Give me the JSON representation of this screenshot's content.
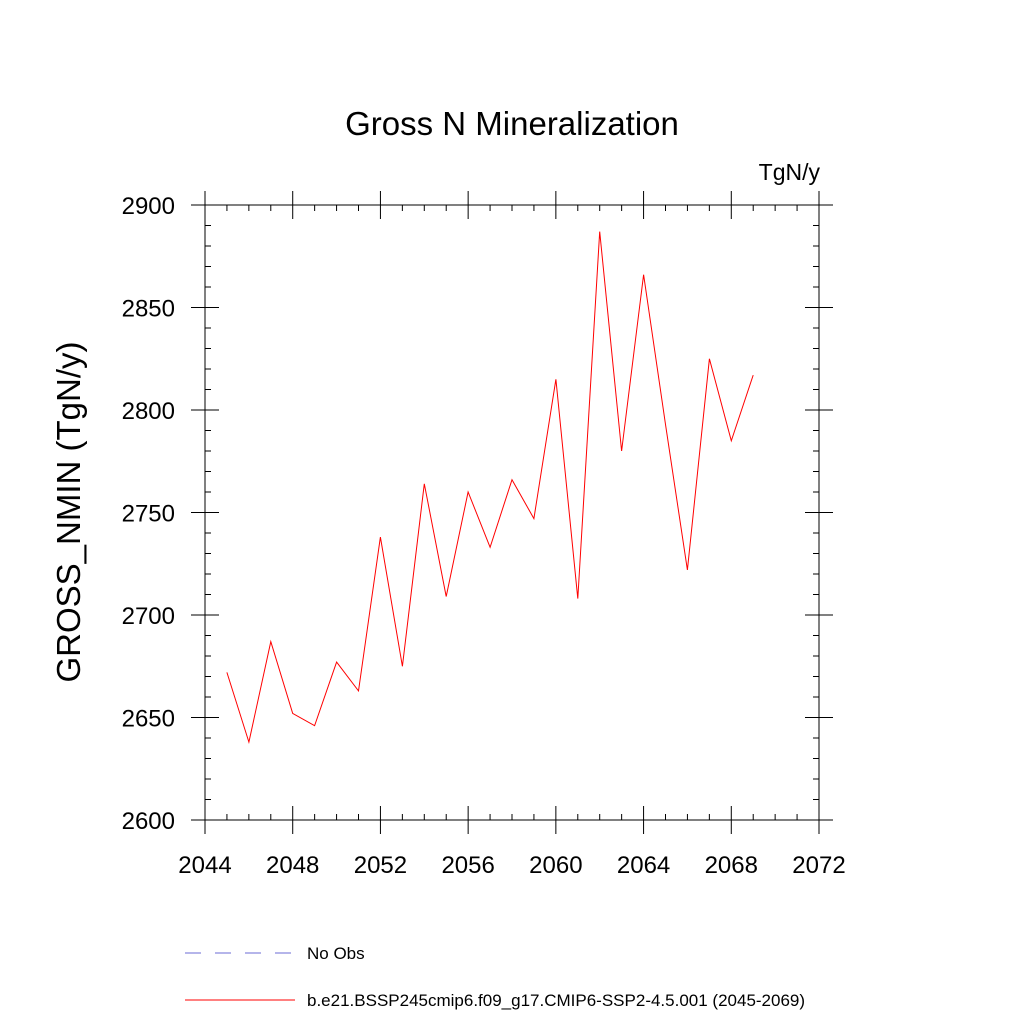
{
  "chart_data": {
    "type": "line",
    "title": "Gross N Mineralization",
    "units_label": "TgN/y",
    "ylabel": "GROSS_NMIN  (TgN/y)",
    "xlabel": "",
    "xlim": [
      2044,
      2072
    ],
    "ylim": [
      2600,
      2900
    ],
    "x_ticks": [
      2044,
      2048,
      2052,
      2056,
      2060,
      2064,
      2068,
      2072
    ],
    "y_ticks": [
      2600,
      2650,
      2700,
      2750,
      2800,
      2850,
      2900
    ],
    "x_minor_step": 1,
    "y_minor_step": 10,
    "grid": false,
    "series": [
      {
        "name": "b.e21.BSSP245cmip6.f09_g17.CMIP6-SSP2-4.5.001 (2045-2069)",
        "color": "#ff0000",
        "dash": "solid",
        "x": [
          2045,
          2046,
          2047,
          2048,
          2049,
          2050,
          2051,
          2052,
          2053,
          2054,
          2055,
          2056,
          2057,
          2058,
          2059,
          2060,
          2061,
          2062,
          2063,
          2064,
          2065,
          2066,
          2067,
          2068,
          2069
        ],
        "values": [
          2672,
          2638,
          2687,
          2652,
          2646,
          2677,
          2663,
          2738,
          2675,
          2764,
          2709,
          2760,
          2733,
          2766,
          2747,
          2815,
          2708,
          2887,
          2780,
          2866,
          2793,
          2722,
          2825,
          2785,
          2817
        ]
      }
    ],
    "legend": {
      "placement": "bottom",
      "entries": [
        {
          "label": "No Obs",
          "color": "#6b6bd6",
          "dash": "dashed"
        },
        {
          "label": "b.e21.BSSP245cmip6.f09_g17.CMIP6-SSP2-4.5.001 (2045-2069)",
          "color": "#ff0000",
          "dash": "solid"
        }
      ]
    }
  }
}
